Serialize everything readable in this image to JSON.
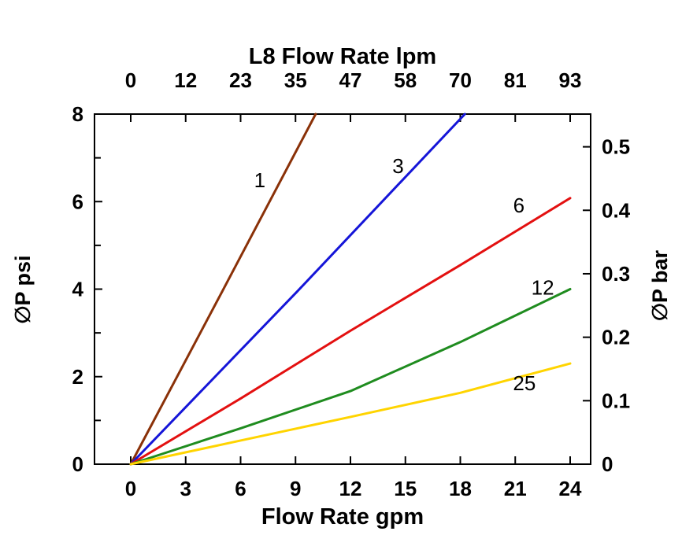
{
  "chart_data": {
    "type": "line",
    "title_top": "L8 Flow Rate lpm",
    "xlabel_bottom": "Flow Rate gpm",
    "ylabel_left": "∅P psi",
    "ylabel_right": "∅P bar",
    "x_bottom": {
      "ticks": [
        0,
        3,
        6,
        9,
        12,
        15,
        18,
        21,
        24
      ],
      "range": [
        0,
        24
      ]
    },
    "x_top": {
      "tick_labels": [
        "0",
        "12",
        "23",
        "35",
        "47",
        "58",
        "70",
        "81",
        "93"
      ]
    },
    "y_left": {
      "ticks": [
        0,
        2,
        4,
        6,
        8
      ],
      "minor_ticks": [
        1,
        3,
        5,
        7
      ],
      "range": [
        0,
        8
      ]
    },
    "y_right": {
      "tick_labels": [
        "0",
        "0.1",
        "0.2",
        "0.3",
        "0.4",
        "0.5"
      ],
      "tick_values_bar": [
        0,
        0.1,
        0.2,
        0.3,
        0.4,
        0.5
      ],
      "psi_per_bar": 14.5038
    },
    "grid": false,
    "legend": "inline-line-labels",
    "series": [
      {
        "label": "1",
        "color": "#8a3108",
        "points": [
          [
            0,
            0
          ],
          [
            5,
            3.95
          ],
          [
            10.1,
            8
          ]
        ],
        "label_pos": [
          7.05,
          6.33
        ]
      },
      {
        "label": "3",
        "color": "#1515d8",
        "points": [
          [
            0,
            0
          ],
          [
            9.1,
            3.95
          ],
          [
            18.25,
            8
          ]
        ],
        "label_pos": [
          14.6,
          6.65
        ]
      },
      {
        "label": "6",
        "color": "#e31010",
        "points": [
          [
            0,
            0
          ],
          [
            6,
            1.5
          ],
          [
            12,
            3.05
          ],
          [
            18,
            4.55
          ],
          [
            24,
            6.08
          ]
        ],
        "label_pos": [
          21.2,
          5.75
        ]
      },
      {
        "label": "12",
        "color": "#1f8c1f",
        "points": [
          [
            0,
            0
          ],
          [
            6,
            0.82
          ],
          [
            12,
            1.67
          ],
          [
            18,
            2.79
          ],
          [
            24,
            4.0
          ]
        ],
        "label_pos": [
          22.5,
          3.87
        ]
      },
      {
        "label": "25",
        "color": "#ffd400",
        "points": [
          [
            0,
            0
          ],
          [
            6,
            0.54
          ],
          [
            12,
            1.08
          ],
          [
            18,
            1.63
          ],
          [
            24,
            2.3
          ]
        ],
        "label_pos": [
          21.5,
          1.69
        ]
      }
    ]
  },
  "colors": {
    "axis": "#000000",
    "background": "#ffffff",
    "text": "#000000"
  }
}
